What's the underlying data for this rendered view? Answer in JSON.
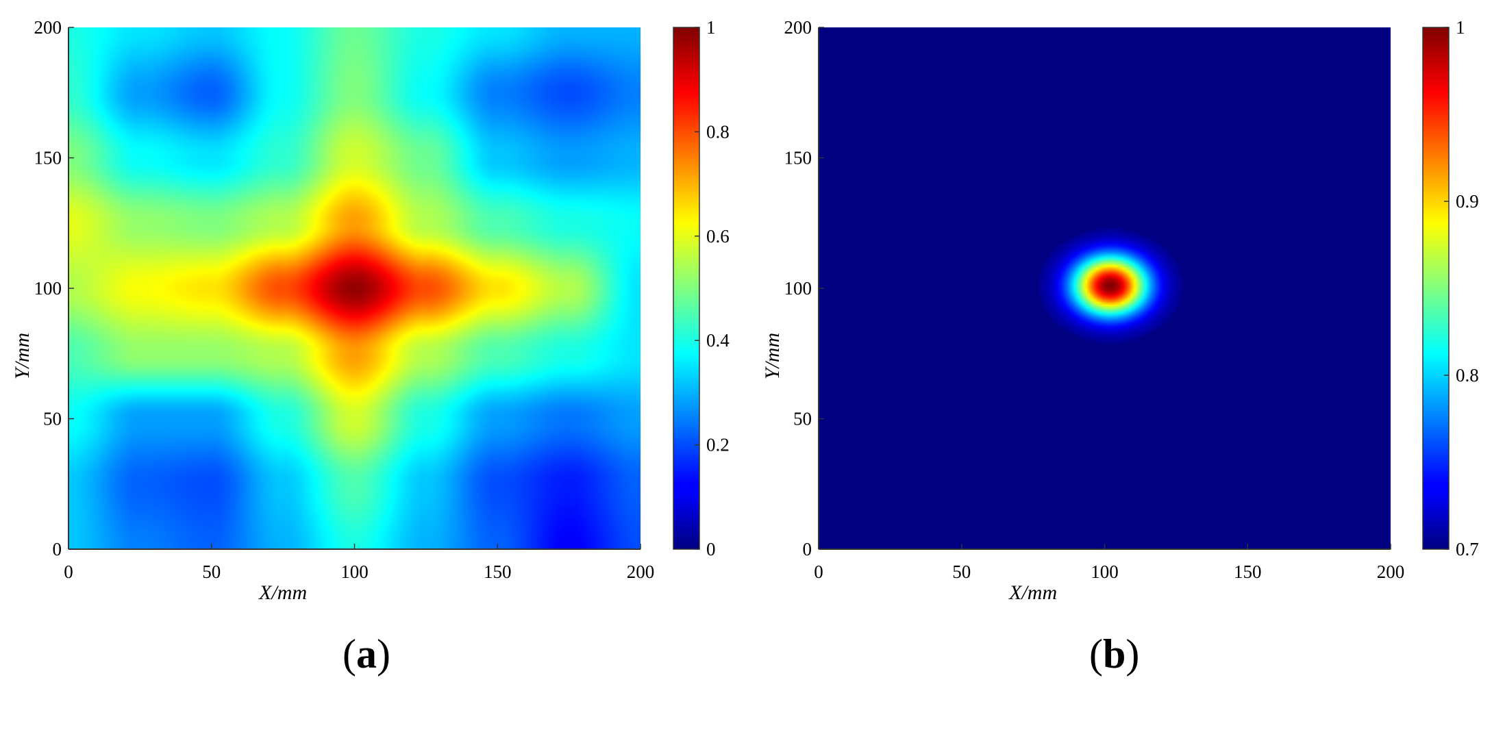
{
  "chart_data": [
    {
      "type": "heatmap",
      "panel_label": "a",
      "xlabel": "X/mm",
      "ylabel": "Y/mm",
      "xlim": [
        0,
        200
      ],
      "ylim": [
        0,
        200
      ],
      "xticks": [
        "0",
        "50",
        "100",
        "150",
        "200"
      ],
      "yticks": [
        "0",
        "50",
        "100",
        "150",
        "200"
      ],
      "colorbar": {
        "range": [
          0,
          1
        ],
        "ticks": [
          "0",
          "0.2",
          "0.4",
          "0.6",
          "0.8",
          "1"
        ],
        "colormap": "jet"
      },
      "value_grid": {
        "x": [
          0,
          25,
          50,
          75,
          100,
          125,
          150,
          175,
          200
        ],
        "y": [
          0,
          25,
          50,
          75,
          100,
          125,
          150,
          175,
          200
        ],
        "z": [
          [
            0.32,
            0.25,
            0.22,
            0.3,
            0.4,
            0.3,
            0.22,
            0.12,
            0.2
          ],
          [
            0.32,
            0.22,
            0.2,
            0.32,
            0.45,
            0.32,
            0.2,
            0.15,
            0.22
          ],
          [
            0.38,
            0.28,
            0.28,
            0.4,
            0.58,
            0.4,
            0.28,
            0.24,
            0.28
          ],
          [
            0.45,
            0.52,
            0.52,
            0.55,
            0.72,
            0.55,
            0.45,
            0.4,
            0.35
          ],
          [
            0.55,
            0.62,
            0.65,
            0.8,
            0.98,
            0.8,
            0.65,
            0.55,
            0.35
          ],
          [
            0.6,
            0.52,
            0.5,
            0.55,
            0.72,
            0.55,
            0.45,
            0.4,
            0.38
          ],
          [
            0.5,
            0.38,
            0.35,
            0.42,
            0.58,
            0.48,
            0.32,
            0.28,
            0.3
          ],
          [
            0.42,
            0.28,
            0.22,
            0.38,
            0.5,
            0.38,
            0.25,
            0.2,
            0.25
          ],
          [
            0.4,
            0.35,
            0.32,
            0.38,
            0.48,
            0.4,
            0.35,
            0.3,
            0.3
          ]
        ]
      }
    },
    {
      "type": "heatmap",
      "panel_label": "b",
      "xlabel": "X/mm",
      "ylabel": "Y/mm",
      "xlim": [
        0,
        200
      ],
      "ylim": [
        0,
        200
      ],
      "xticks": [
        "0",
        "50",
        "100",
        "150",
        "200"
      ],
      "yticks": [
        "0",
        "50",
        "100",
        "150",
        "200"
      ],
      "colorbar": {
        "range": [
          0.7,
          1
        ],
        "ticks": [
          "0.7",
          "0.8",
          "0.9",
          "1"
        ],
        "colormap": "jet"
      },
      "background_value": 0.7,
      "peak": {
        "x": 102,
        "y": 101,
        "value": 1.0
      }
    }
  ]
}
